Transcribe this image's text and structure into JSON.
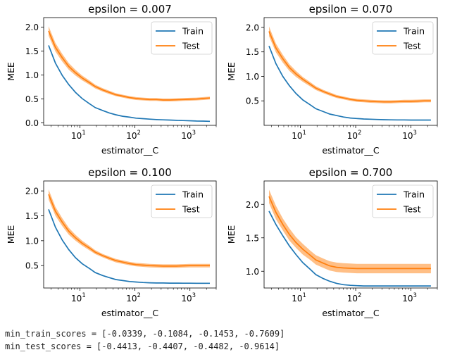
{
  "colors": {
    "train": "#1f77b4",
    "test": "#ff7f0e",
    "band": "#ffbf86"
  },
  "legend": {
    "train_label": "Train",
    "test_label": "Test",
    "placement": "upper right"
  },
  "chart_data": [
    {
      "type": "line",
      "title": "epsilon = 0.007",
      "xlabel": "estimator__C",
      "ylabel": "MEE",
      "xscale": "log",
      "xlim": [
        2.2,
        3000
      ],
      "ylim": [
        -0.05,
        2.2
      ],
      "yticks": [
        "0.0",
        "0.5",
        "1.0",
        "1.5",
        "2.0"
      ],
      "ytick_values": [
        0,
        0.5,
        1,
        1.5,
        2
      ],
      "xticks": [
        10,
        100,
        1000
      ],
      "xtick_labels": [
        "10",
        "10",
        "10"
      ],
      "xtick_exps": [
        "1",
        "2",
        "3"
      ],
      "x": [
        2.7,
        3.6,
        4.8,
        6.3,
        8.3,
        11,
        15,
        19,
        26,
        34,
        45,
        60,
        80,
        105,
        140,
        185,
        245,
        325,
        430,
        570,
        750,
        1000,
        1320,
        1750,
        2300
      ],
      "series": [
        {
          "name": "Train",
          "values": [
            1.62,
            1.25,
            0.99,
            0.8,
            0.64,
            0.51,
            0.4,
            0.32,
            0.26,
            0.21,
            0.17,
            0.14,
            0.12,
            0.1,
            0.09,
            0.08,
            0.07,
            0.065,
            0.06,
            0.055,
            0.05,
            0.045,
            0.04,
            0.038,
            0.034
          ]
        },
        {
          "name": "Test",
          "values": [
            1.92,
            1.58,
            1.36,
            1.18,
            1.05,
            0.94,
            0.84,
            0.76,
            0.69,
            0.64,
            0.59,
            0.56,
            0.53,
            0.51,
            0.5,
            0.49,
            0.49,
            0.48,
            0.48,
            0.485,
            0.49,
            0.495,
            0.5,
            0.51,
            0.52
          ],
          "std": [
            0.1,
            0.09,
            0.08,
            0.07,
            0.06,
            0.05,
            0.045,
            0.04,
            0.035,
            0.035,
            0.03,
            0.03,
            0.03,
            0.03,
            0.03,
            0.03,
            0.03,
            0.03,
            0.03,
            0.03,
            0.03,
            0.03,
            0.03,
            0.03,
            0.03
          ]
        }
      ]
    },
    {
      "type": "line",
      "title": "epsilon = 0.070",
      "xlabel": "estimator__C",
      "ylabel": "MEE",
      "xscale": "log",
      "xlim": [
        2.2,
        3000
      ],
      "ylim": [
        0.0,
        2.2
      ],
      "yticks": [
        "0.5",
        "1.0",
        "1.5",
        "2.0"
      ],
      "ytick_values": [
        0.5,
        1,
        1.5,
        2
      ],
      "xticks": [
        10,
        100,
        1000
      ],
      "xtick_labels": [
        "10",
        "10",
        "10"
      ],
      "xtick_exps": [
        "1",
        "2",
        "3"
      ],
      "x": [
        2.7,
        3.6,
        4.8,
        6.3,
        8.3,
        11,
        15,
        19,
        26,
        34,
        45,
        60,
        80,
        105,
        140,
        185,
        245,
        325,
        430,
        570,
        750,
        1000,
        1320,
        1750,
        2300
      ],
      "series": [
        {
          "name": "Train",
          "values": [
            1.62,
            1.26,
            1.0,
            0.81,
            0.65,
            0.52,
            0.42,
            0.34,
            0.28,
            0.23,
            0.2,
            0.17,
            0.15,
            0.14,
            0.13,
            0.125,
            0.12,
            0.115,
            0.112,
            0.11,
            0.11,
            0.108,
            0.108,
            0.108,
            0.108
          ]
        },
        {
          "name": "Test",
          "values": [
            1.92,
            1.58,
            1.36,
            1.18,
            1.05,
            0.94,
            0.84,
            0.76,
            0.69,
            0.64,
            0.59,
            0.56,
            0.53,
            0.51,
            0.5,
            0.49,
            0.485,
            0.48,
            0.48,
            0.485,
            0.49,
            0.49,
            0.495,
            0.5,
            0.5
          ],
          "std": [
            0.1,
            0.09,
            0.08,
            0.07,
            0.06,
            0.05,
            0.045,
            0.04,
            0.035,
            0.035,
            0.03,
            0.03,
            0.03,
            0.03,
            0.03,
            0.03,
            0.03,
            0.03,
            0.03,
            0.03,
            0.03,
            0.03,
            0.03,
            0.03,
            0.03
          ]
        }
      ]
    },
    {
      "type": "line",
      "title": "epsilon = 0.100",
      "xlabel": "estimator__C",
      "ylabel": "MEE",
      "xscale": "log",
      "xlim": [
        2.2,
        3000
      ],
      "ylim": [
        0.05,
        2.2
      ],
      "yticks": [
        "0.5",
        "1.0",
        "1.5",
        "2.0"
      ],
      "ytick_values": [
        0.5,
        1,
        1.5,
        2
      ],
      "xticks": [
        10,
        100,
        1000
      ],
      "xtick_labels": [
        "10",
        "10",
        "10"
      ],
      "xtick_exps": [
        "1",
        "2",
        "3"
      ],
      "x": [
        2.7,
        3.6,
        4.8,
        6.3,
        8.3,
        11,
        15,
        19,
        26,
        34,
        45,
        60,
        80,
        105,
        140,
        185,
        245,
        325,
        430,
        570,
        750,
        1000,
        1320,
        1750,
        2300
      ],
      "series": [
        {
          "name": "Train",
          "values": [
            1.63,
            1.27,
            1.01,
            0.82,
            0.66,
            0.54,
            0.44,
            0.36,
            0.3,
            0.26,
            0.22,
            0.2,
            0.18,
            0.17,
            0.16,
            0.155,
            0.15,
            0.15,
            0.148,
            0.147,
            0.146,
            0.146,
            0.145,
            0.145,
            0.145
          ]
        },
        {
          "name": "Test",
          "values": [
            1.93,
            1.59,
            1.37,
            1.19,
            1.06,
            0.95,
            0.85,
            0.77,
            0.7,
            0.65,
            0.6,
            0.57,
            0.54,
            0.52,
            0.51,
            0.5,
            0.495,
            0.49,
            0.49,
            0.49,
            0.495,
            0.5,
            0.5,
            0.5,
            0.5
          ],
          "std": [
            0.1,
            0.09,
            0.08,
            0.07,
            0.06,
            0.05,
            0.045,
            0.04,
            0.035,
            0.035,
            0.035,
            0.035,
            0.035,
            0.035,
            0.035,
            0.035,
            0.035,
            0.035,
            0.035,
            0.035,
            0.035,
            0.035,
            0.035,
            0.035,
            0.035
          ]
        }
      ]
    },
    {
      "type": "line",
      "title": "epsilon = 0.700",
      "xlabel": "estimator__C",
      "ylabel": "MEE",
      "xscale": "log",
      "xlim": [
        2.2,
        3000
      ],
      "ylim": [
        0.75,
        2.35
      ],
      "yticks": [
        "1.0",
        "1.5",
        "2.0"
      ],
      "ytick_values": [
        1,
        1.5,
        2
      ],
      "xticks": [
        10,
        100,
        1000
      ],
      "xtick_labels": [
        "10",
        "10",
        "10"
      ],
      "xtick_exps": [
        "1",
        "2",
        "3"
      ],
      "x": [
        2.7,
        3.6,
        4.8,
        6.3,
        8.3,
        11,
        15,
        19,
        26,
        34,
        45,
        60,
        80,
        105,
        140,
        185,
        245,
        325,
        430,
        570,
        750,
        1000,
        1320,
        1750,
        2300
      ],
      "series": [
        {
          "name": "Train",
          "values": [
            1.9,
            1.7,
            1.53,
            1.38,
            1.25,
            1.13,
            1.03,
            0.95,
            0.89,
            0.85,
            0.82,
            0.8,
            0.79,
            0.785,
            0.78,
            0.78,
            0.78,
            0.78,
            0.78,
            0.78,
            0.78,
            0.78,
            0.78,
            0.78,
            0.78
          ]
        },
        {
          "name": "Test",
          "values": [
            2.12,
            1.88,
            1.7,
            1.55,
            1.43,
            1.33,
            1.24,
            1.17,
            1.12,
            1.08,
            1.06,
            1.05,
            1.045,
            1.04,
            1.04,
            1.04,
            1.04,
            1.04,
            1.04,
            1.04,
            1.04,
            1.04,
            1.04,
            1.04,
            1.04
          ],
          "std": [
            0.1,
            0.1,
            0.09,
            0.09,
            0.08,
            0.08,
            0.07,
            0.07,
            0.07,
            0.07,
            0.07,
            0.07,
            0.07,
            0.07,
            0.07,
            0.07,
            0.07,
            0.07,
            0.07,
            0.07,
            0.07,
            0.07,
            0.07,
            0.07,
            0.07
          ]
        }
      ]
    }
  ],
  "output": {
    "train_line": "min_train_scores = [-0.0339, -0.1084, -0.1453, -0.7609]",
    "test_line": "min_test_scores = [-0.4413, -0.4407, -0.4482, -0.9614]"
  }
}
